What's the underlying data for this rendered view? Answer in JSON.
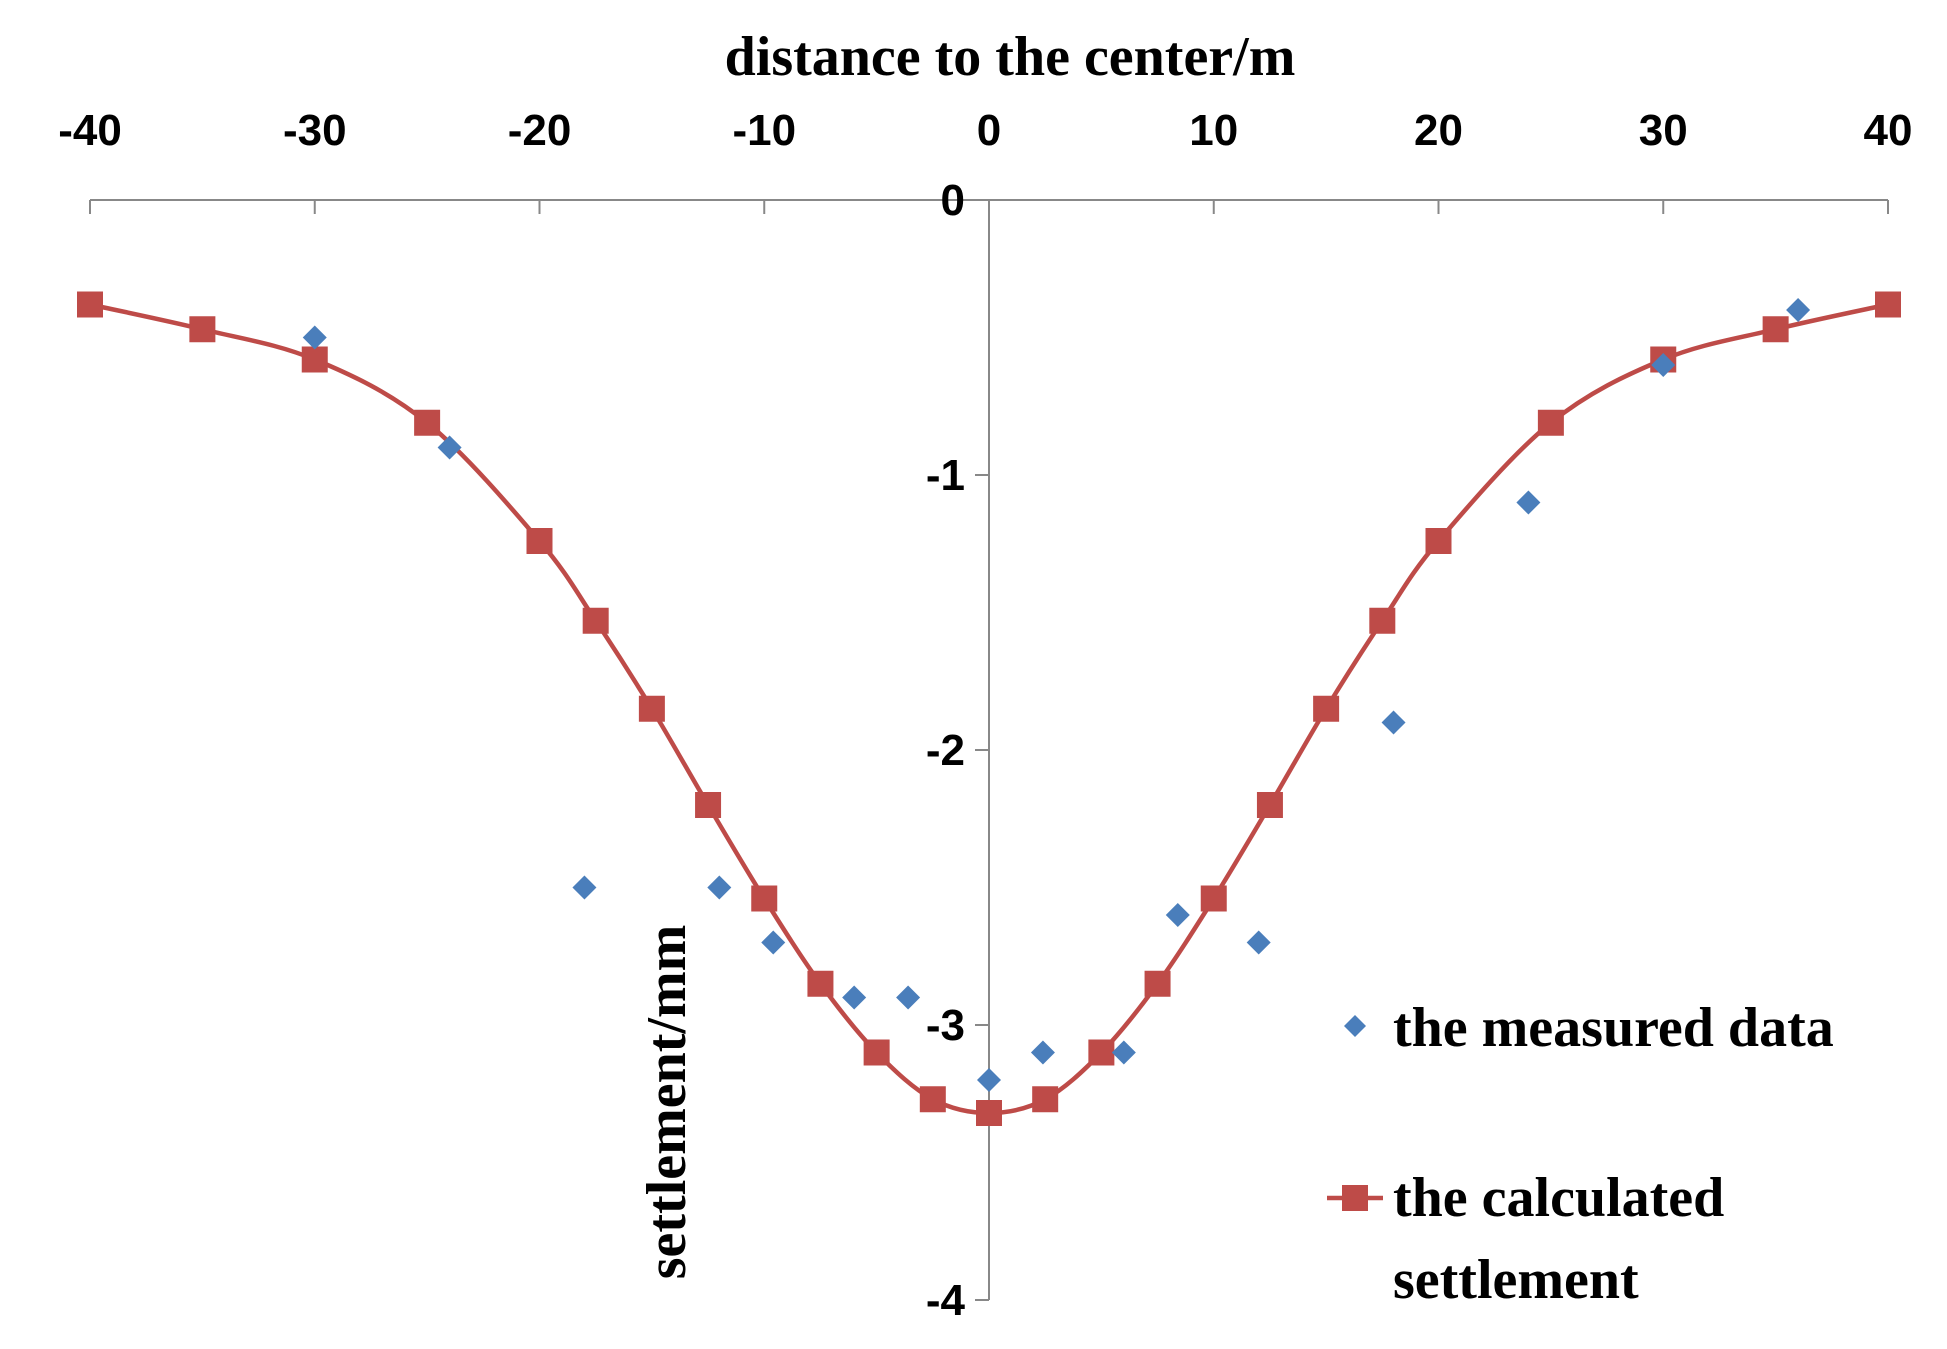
{
  "chart_data": {
    "type": "scatter",
    "title": "",
    "xlabel": "distance to the center/m",
    "ylabel": "settlement/mm",
    "xlim": [
      -40,
      40
    ],
    "ylim": [
      -4,
      0
    ],
    "x_ticks": [
      -40,
      -30,
      -20,
      -10,
      0,
      10,
      20,
      30,
      40
    ],
    "y_ticks": [
      0,
      -1,
      -2,
      -3,
      -4
    ],
    "x_axis_position": "top",
    "y_axis_at_x": 0,
    "grid": false,
    "legend_position": "bottom-right",
    "series": [
      {
        "name": "the measured data",
        "type": "scatter",
        "marker": "diamond",
        "color": "#4a7ebb",
        "x": [
          -30,
          -24,
          -18,
          -12,
          -9.6,
          -6,
          -3.6,
          0,
          2.4,
          6,
          8.4,
          12,
          18,
          24,
          30,
          36
        ],
        "y": [
          -0.5,
          -0.9,
          -2.5,
          -2.5,
          -2.7,
          -2.9,
          -2.9,
          -3.2,
          -3.1,
          -3.1,
          -2.6,
          -2.7,
          -1.9,
          -1.1,
          -0.6,
          -0.4
        ]
      },
      {
        "name": "the calculated settlement",
        "type": "line",
        "marker": "square",
        "color": "#be4b48",
        "x": [
          -40,
          -35,
          -30,
          -25,
          -20,
          -17.5,
          -15,
          -12.5,
          -10,
          -7.5,
          -5,
          -2.5,
          0,
          2.5,
          5,
          7.5,
          10,
          12.5,
          15,
          17.5,
          20,
          25,
          30,
          35,
          40
        ],
        "y": [
          -0.38,
          -0.47,
          -0.58,
          -0.81,
          -1.24,
          -1.53,
          -1.85,
          -2.2,
          -2.54,
          -2.85,
          -3.1,
          -3.27,
          -3.32,
          -3.27,
          -3.1,
          -2.85,
          -2.54,
          -2.2,
          -1.85,
          -1.53,
          -1.24,
          -0.81,
          -0.58,
          -0.47,
          -0.38
        ]
      }
    ],
    "legend": {
      "entries": [
        {
          "label": "the measured data"
        },
        {
          "label_line1": "the calculated",
          "label_line2": "settlement"
        }
      ]
    }
  }
}
